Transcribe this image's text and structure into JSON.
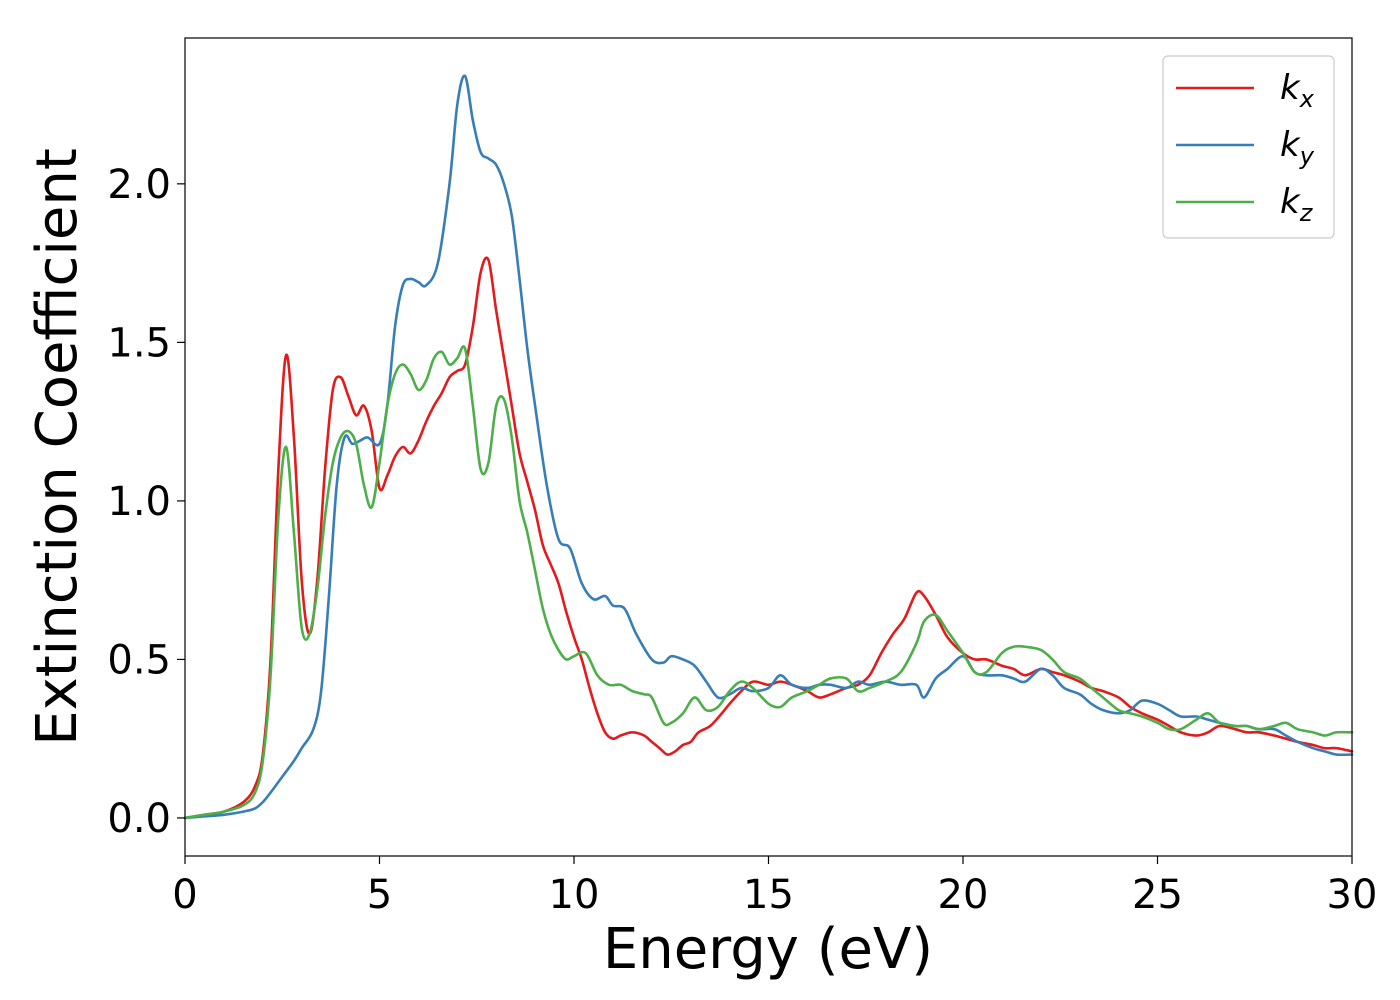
{
  "chart_data": {
    "type": "line",
    "title": "",
    "xlabel": "Energy (eV)",
    "ylabel": "Extinction Coefficient",
    "xlim": [
      0,
      30
    ],
    "ylim": [
      -0.12,
      2.46
    ],
    "xticks": [
      0,
      5,
      10,
      15,
      20,
      25,
      30
    ],
    "xtick_labels": [
      "0",
      "5",
      "10",
      "15",
      "20",
      "25",
      "30"
    ],
    "yticks": [
      0.0,
      0.5,
      1.0,
      1.5,
      2.0
    ],
    "ytick_labels": [
      "0.0",
      "0.5",
      "1.0",
      "1.5",
      "2.0"
    ],
    "grid": false,
    "legend_position": "top-right",
    "series": [
      {
        "name": "k_x",
        "label_main": "k",
        "label_sub": "x",
        "color": "#e41a1c",
        "x": [
          0,
          0.5,
          1,
          1.5,
          1.8,
          2.0,
          2.2,
          2.4,
          2.6,
          2.8,
          3.0,
          3.2,
          3.4,
          3.6,
          3.8,
          4.0,
          4.2,
          4.4,
          4.6,
          4.8,
          5.0,
          5.2,
          5.4,
          5.6,
          5.8,
          6.0,
          6.2,
          6.4,
          6.6,
          6.8,
          7.0,
          7.2,
          7.4,
          7.6,
          7.8,
          8.0,
          8.2,
          8.4,
          8.6,
          8.8,
          9.0,
          9.2,
          9.4,
          9.6,
          9.8,
          10.0,
          10.2,
          10.4,
          10.6,
          10.8,
          11.0,
          11.2,
          11.5,
          11.8,
          12.0,
          12.2,
          12.4,
          12.6,
          12.8,
          13.0,
          13.2,
          13.5,
          13.8,
          14.0,
          14.3,
          14.6,
          15.0,
          15.3,
          15.6,
          16.0,
          16.3,
          16.6,
          17.0,
          17.3,
          17.6,
          17.9,
          18.2,
          18.5,
          18.8,
          19.0,
          19.3,
          19.6,
          20.0,
          20.3,
          20.6,
          21.0,
          21.3,
          21.6,
          22.0,
          22.3,
          22.6,
          23.0,
          23.3,
          23.6,
          24.0,
          24.3,
          24.6,
          25.0,
          25.3,
          25.6,
          26.0,
          26.3,
          26.6,
          27.0,
          27.3,
          27.6,
          28.0,
          28.3,
          28.6,
          29.0,
          29.3,
          29.6,
          30.0
        ],
        "y": [
          0.0,
          0.01,
          0.02,
          0.05,
          0.1,
          0.2,
          0.5,
          1.1,
          1.46,
          1.2,
          0.75,
          0.58,
          0.75,
          1.1,
          1.35,
          1.39,
          1.33,
          1.27,
          1.3,
          1.22,
          1.04,
          1.08,
          1.14,
          1.17,
          1.15,
          1.19,
          1.25,
          1.3,
          1.34,
          1.39,
          1.41,
          1.43,
          1.55,
          1.72,
          1.76,
          1.6,
          1.45,
          1.3,
          1.15,
          1.06,
          0.97,
          0.86,
          0.8,
          0.74,
          0.65,
          0.57,
          0.5,
          0.41,
          0.33,
          0.27,
          0.25,
          0.26,
          0.27,
          0.26,
          0.24,
          0.22,
          0.2,
          0.21,
          0.23,
          0.24,
          0.27,
          0.29,
          0.33,
          0.36,
          0.4,
          0.43,
          0.42,
          0.43,
          0.42,
          0.4,
          0.38,
          0.39,
          0.41,
          0.42,
          0.45,
          0.52,
          0.58,
          0.63,
          0.71,
          0.7,
          0.64,
          0.57,
          0.52,
          0.5,
          0.5,
          0.48,
          0.47,
          0.45,
          0.47,
          0.46,
          0.45,
          0.43,
          0.41,
          0.4,
          0.38,
          0.35,
          0.33,
          0.31,
          0.29,
          0.27,
          0.26,
          0.27,
          0.29,
          0.28,
          0.27,
          0.27,
          0.26,
          0.25,
          0.24,
          0.23,
          0.22,
          0.22,
          0.21
        ]
      },
      {
        "name": "k_y",
        "label_main": "k",
        "label_sub": "y",
        "color": "#377eb8",
        "x": [
          0,
          0.5,
          1,
          1.5,
          1.8,
          2.0,
          2.2,
          2.5,
          2.8,
          3.0,
          3.3,
          3.5,
          3.7,
          3.9,
          4.1,
          4.3,
          4.5,
          4.7,
          5.0,
          5.2,
          5.4,
          5.6,
          5.8,
          6.0,
          6.2,
          6.5,
          6.8,
          7.0,
          7.2,
          7.4,
          7.6,
          7.8,
          8.0,
          8.2,
          8.4,
          8.6,
          8.8,
          9.0,
          9.3,
          9.6,
          9.9,
          10.2,
          10.5,
          10.8,
          11.0,
          11.3,
          11.6,
          12.0,
          12.3,
          12.5,
          12.8,
          13.1,
          13.4,
          13.7,
          14.0,
          14.3,
          14.6,
          15.0,
          15.3,
          15.6,
          16.0,
          16.3,
          16.6,
          17.0,
          17.3,
          17.6,
          18.0,
          18.4,
          18.8,
          19.0,
          19.3,
          19.6,
          20.0,
          20.3,
          20.6,
          21.0,
          21.3,
          21.6,
          22.0,
          22.3,
          22.6,
          23.0,
          23.3,
          23.6,
          24.0,
          24.3,
          24.6,
          25.0,
          25.3,
          25.6,
          26.0,
          26.3,
          26.6,
          27.0,
          27.3,
          27.6,
          28.0,
          28.3,
          28.6,
          29.0,
          29.3,
          29.6,
          30.0
        ],
        "y": [
          0.0,
          0.005,
          0.01,
          0.02,
          0.03,
          0.05,
          0.08,
          0.13,
          0.18,
          0.22,
          0.28,
          0.4,
          0.7,
          1.05,
          1.2,
          1.18,
          1.19,
          1.2,
          1.18,
          1.3,
          1.55,
          1.68,
          1.7,
          1.69,
          1.68,
          1.75,
          2.0,
          2.25,
          2.34,
          2.2,
          2.1,
          2.08,
          2.06,
          2.0,
          1.9,
          1.7,
          1.48,
          1.3,
          1.05,
          0.88,
          0.85,
          0.74,
          0.69,
          0.7,
          0.67,
          0.66,
          0.58,
          0.5,
          0.49,
          0.51,
          0.5,
          0.48,
          0.43,
          0.38,
          0.39,
          0.41,
          0.4,
          0.41,
          0.45,
          0.42,
          0.41,
          0.42,
          0.42,
          0.41,
          0.43,
          0.42,
          0.43,
          0.42,
          0.42,
          0.38,
          0.44,
          0.47,
          0.51,
          0.46,
          0.45,
          0.45,
          0.44,
          0.43,
          0.47,
          0.45,
          0.41,
          0.39,
          0.36,
          0.34,
          0.33,
          0.34,
          0.37,
          0.36,
          0.34,
          0.32,
          0.32,
          0.31,
          0.3,
          0.29,
          0.29,
          0.28,
          0.28,
          0.26,
          0.24,
          0.22,
          0.21,
          0.2,
          0.2
        ]
      },
      {
        "name": "k_z",
        "label_main": "k",
        "label_sub": "z",
        "color": "#4daf4a",
        "x": [
          0,
          0.5,
          1,
          1.5,
          1.8,
          2.0,
          2.2,
          2.4,
          2.6,
          2.8,
          3.0,
          3.2,
          3.4,
          3.6,
          3.8,
          4.0,
          4.2,
          4.4,
          4.6,
          4.8,
          5.0,
          5.2,
          5.4,
          5.6,
          5.8,
          6.0,
          6.2,
          6.4,
          6.6,
          6.8,
          7.0,
          7.2,
          7.4,
          7.6,
          7.8,
          8.0,
          8.2,
          8.4,
          8.6,
          8.8,
          9.0,
          9.2,
          9.4,
          9.6,
          9.8,
          10.0,
          10.3,
          10.6,
          10.9,
          11.2,
          11.5,
          11.8,
          12.0,
          12.3,
          12.5,
          12.8,
          13.1,
          13.4,
          13.7,
          14.0,
          14.3,
          14.6,
          15.0,
          15.3,
          15.6,
          16.0,
          16.3,
          16.6,
          17.0,
          17.3,
          17.6,
          18.0,
          18.4,
          18.8,
          19.0,
          19.3,
          19.6,
          20.0,
          20.3,
          20.6,
          21.0,
          21.3,
          21.6,
          22.0,
          22.3,
          22.6,
          23.0,
          23.3,
          23.6,
          24.0,
          24.3,
          24.6,
          25.0,
          25.3,
          25.6,
          26.0,
          26.3,
          26.6,
          27.0,
          27.3,
          27.6,
          28.0,
          28.3,
          28.6,
          29.0,
          29.3,
          29.6,
          30.0
        ],
        "y": [
          0.0,
          0.01,
          0.02,
          0.04,
          0.08,
          0.18,
          0.45,
          0.95,
          1.17,
          0.9,
          0.6,
          0.58,
          0.72,
          0.95,
          1.12,
          1.2,
          1.22,
          1.18,
          1.05,
          0.98,
          1.12,
          1.3,
          1.4,
          1.43,
          1.4,
          1.35,
          1.38,
          1.45,
          1.47,
          1.43,
          1.45,
          1.48,
          1.3,
          1.1,
          1.12,
          1.3,
          1.32,
          1.2,
          1.0,
          0.9,
          0.78,
          0.66,
          0.58,
          0.53,
          0.5,
          0.51,
          0.52,
          0.45,
          0.42,
          0.42,
          0.4,
          0.39,
          0.38,
          0.3,
          0.3,
          0.33,
          0.38,
          0.34,
          0.35,
          0.4,
          0.43,
          0.41,
          0.36,
          0.35,
          0.38,
          0.4,
          0.42,
          0.44,
          0.44,
          0.4,
          0.41,
          0.43,
          0.46,
          0.55,
          0.62,
          0.64,
          0.59,
          0.52,
          0.46,
          0.46,
          0.52,
          0.54,
          0.54,
          0.53,
          0.5,
          0.46,
          0.44,
          0.41,
          0.38,
          0.34,
          0.33,
          0.32,
          0.3,
          0.28,
          0.28,
          0.31,
          0.33,
          0.3,
          0.29,
          0.29,
          0.28,
          0.29,
          0.3,
          0.28,
          0.27,
          0.26,
          0.27,
          0.27
        ]
      }
    ]
  }
}
